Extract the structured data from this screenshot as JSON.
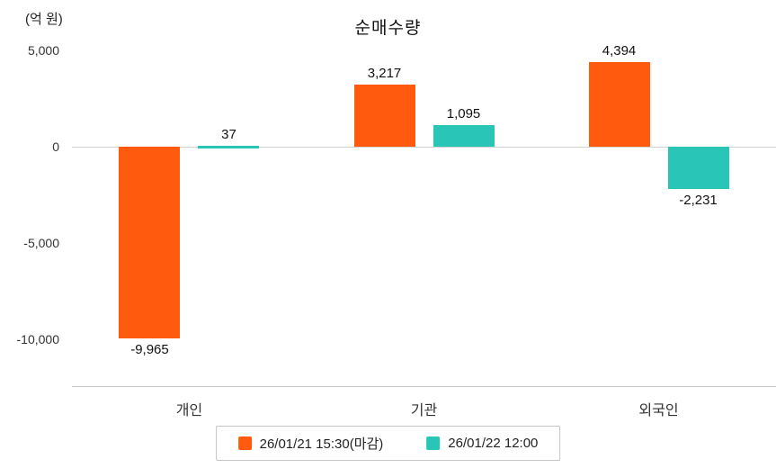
{
  "chart_data": {
    "type": "bar",
    "title": "순매수량",
    "ylabel": "(억 원)",
    "categories": [
      "개인",
      "기관",
      "외국인"
    ],
    "series": [
      {
        "name": "26/01/21 15:30(마감)",
        "color": "#ff5a0e",
        "values": [
          -9965,
          3217,
          4394
        ],
        "labels": [
          "-9,965",
          "3,217",
          "4,394"
        ]
      },
      {
        "name": "26/01/22 12:00",
        "color": "#29c6b7",
        "values": [
          37,
          1095,
          -2231
        ],
        "labels": [
          "37",
          "1,095",
          "-2,231"
        ]
      }
    ],
    "yticks": [
      5000,
      0,
      -5000,
      -10000
    ],
    "ytick_labels": [
      "5,000",
      "0",
      "-5,000",
      "-10,000"
    ],
    "ylim": [
      -12500,
      5500
    ],
    "grid": false,
    "legend_position": "bottom"
  }
}
